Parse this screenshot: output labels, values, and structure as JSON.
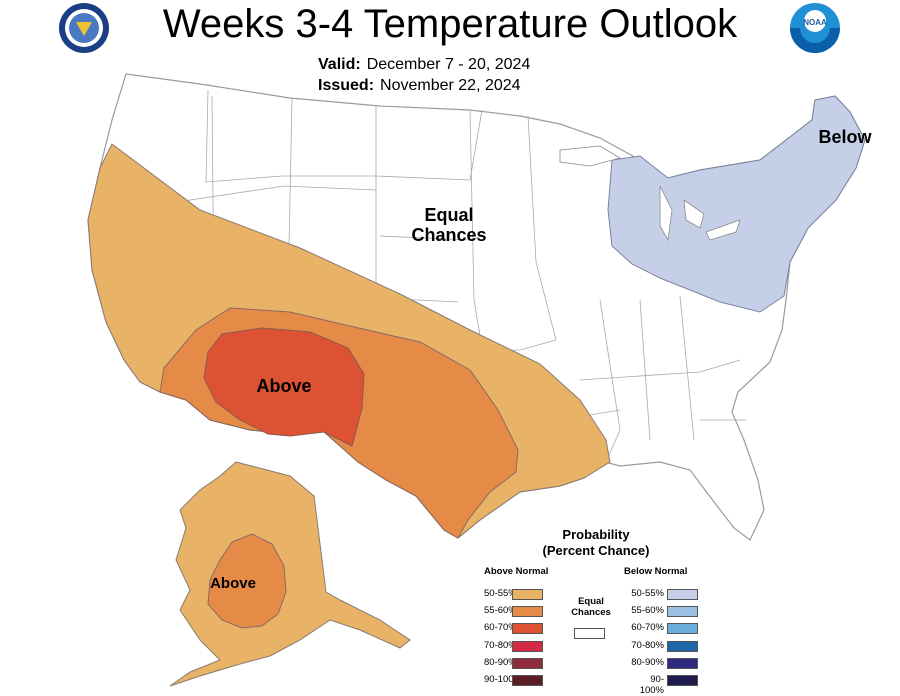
{
  "title": "Weeks 3-4 Temperature Outlook",
  "valid_label": "Valid:",
  "valid_value": "December 7 - 20, 2024",
  "issued_label": "Issued:",
  "issued_value": "November 22, 2024",
  "logos": {
    "left": {
      "icon": "commerce-seal-icon",
      "color": "#1b3f86"
    },
    "right": {
      "icon": "noaa-logo-icon",
      "text": "NOAA",
      "color": "#1f8fd6"
    }
  },
  "map_labels": {
    "equal": "Equal\nChances",
    "below": "Below",
    "above_conus": "Above",
    "above_alaska": "Above"
  },
  "legend": {
    "title": "Probability\n(Percent Chance)",
    "above_heading": "Above Normal",
    "below_heading": "Below Normal",
    "equal_label": "Equal\nChances",
    "equal_color": "#ffffff",
    "above": [
      {
        "label": "50-55%",
        "color": "#e8b366"
      },
      {
        "label": "55-60%",
        "color": "#e68a48"
      },
      {
        "label": "60-70%",
        "color": "#dc5232"
      },
      {
        "label": "70-80%",
        "color": "#d42a48"
      },
      {
        "label": "80-90%",
        "color": "#8f2c3c"
      },
      {
        "label": "90-100%",
        "color": "#5c1c24"
      }
    ],
    "below": [
      {
        "label": "50-55%",
        "color": "#c5d0e8"
      },
      {
        "label": "55-60%",
        "color": "#9bc2e2"
      },
      {
        "label": "60-70%",
        "color": "#6aaedd"
      },
      {
        "label": "70-80%",
        "color": "#1f66a8"
      },
      {
        "label": "80-90%",
        "color": "#2e2a80"
      },
      {
        "label": "90-100%",
        "color": "#1e1b4e"
      }
    ]
  },
  "map_colors": {
    "land": "#ffffff",
    "borders": "#9a9a9a",
    "above_50_55": "#e8b366",
    "above_55_60": "#e68a48",
    "above_60_70": "#dc5232",
    "below_50_55": "#c5d0e8"
  }
}
